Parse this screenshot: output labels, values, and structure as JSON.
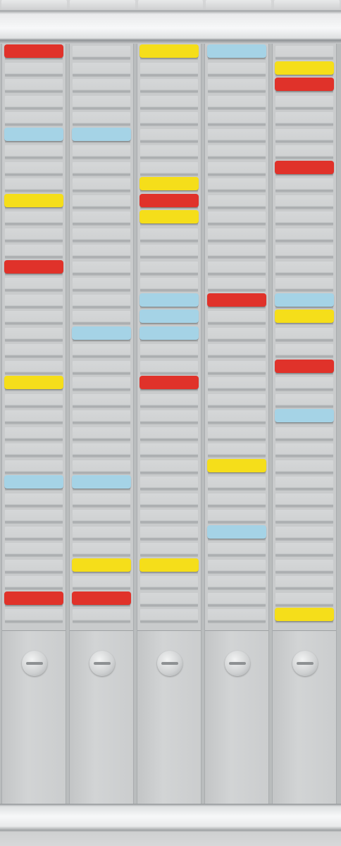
{
  "colors": {
    "red": "#e0322a",
    "blue": "#a5d3e6",
    "yellow": "#f5de1a",
    "panel": "#c9cbcc"
  },
  "board": {
    "column_count": 5,
    "slots_per_column": 35,
    "columns": [
      {
        "name": "column-1",
        "cards": [
          {
            "slot": 0,
            "color": "red"
          },
          {
            "slot": 5,
            "color": "blue"
          },
          {
            "slot": 9,
            "color": "yellow"
          },
          {
            "slot": 13,
            "color": "red"
          },
          {
            "slot": 20,
            "color": "yellow"
          },
          {
            "slot": 26,
            "color": "blue"
          },
          {
            "slot": 33,
            "color": "red"
          }
        ]
      },
      {
        "name": "column-2",
        "cards": [
          {
            "slot": 5,
            "color": "blue"
          },
          {
            "slot": 17,
            "color": "blue"
          },
          {
            "slot": 26,
            "color": "blue"
          },
          {
            "slot": 31,
            "color": "yellow"
          },
          {
            "slot": 33,
            "color": "red"
          }
        ]
      },
      {
        "name": "column-3",
        "cards": [
          {
            "slot": 0,
            "color": "yellow"
          },
          {
            "slot": 8,
            "color": "yellow"
          },
          {
            "slot": 9,
            "color": "red"
          },
          {
            "slot": 10,
            "color": "yellow"
          },
          {
            "slot": 15,
            "color": "blue"
          },
          {
            "slot": 16,
            "color": "blue"
          },
          {
            "slot": 17,
            "color": "blue"
          },
          {
            "slot": 20,
            "color": "red"
          },
          {
            "slot": 31,
            "color": "yellow"
          }
        ]
      },
      {
        "name": "column-4",
        "cards": [
          {
            "slot": 0,
            "color": "blue"
          },
          {
            "slot": 15,
            "color": "red"
          },
          {
            "slot": 25,
            "color": "yellow"
          },
          {
            "slot": 29,
            "color": "blue"
          }
        ]
      },
      {
        "name": "column-5",
        "cards": [
          {
            "slot": 1,
            "color": "yellow"
          },
          {
            "slot": 2,
            "color": "red"
          },
          {
            "slot": 7,
            "color": "red"
          },
          {
            "slot": 15,
            "color": "blue"
          },
          {
            "slot": 16,
            "color": "yellow"
          },
          {
            "slot": 19,
            "color": "red"
          },
          {
            "slot": 22,
            "color": "blue"
          },
          {
            "slot": 34,
            "color": "yellow"
          }
        ]
      }
    ]
  }
}
